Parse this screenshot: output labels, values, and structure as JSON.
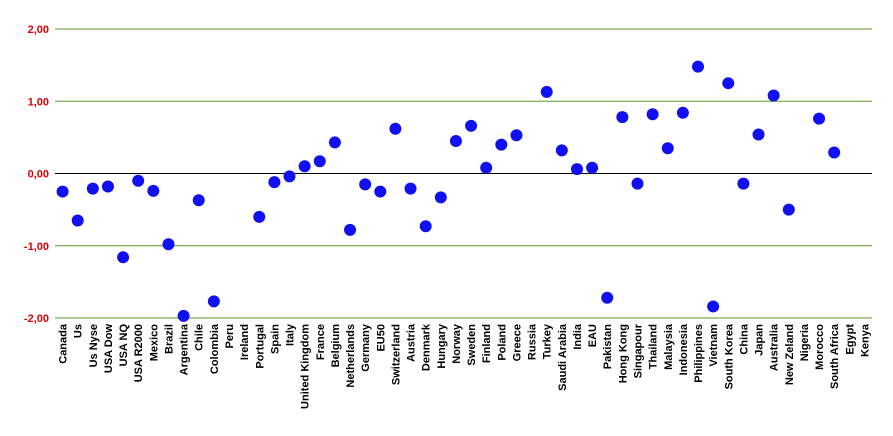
{
  "chart_data": {
    "type": "scatter",
    "categories": [
      "Canada",
      "Us",
      "Us Nyse",
      "USA Dow",
      "USA NQ",
      "USA R2000",
      "Mexico",
      "Brazil",
      "Argentina",
      "Chile",
      "Colombia",
      "Peru",
      "Ireland",
      "Portugal",
      "Spain",
      "Italy",
      "United Kingdom",
      "France",
      "Belgium",
      "Netherlands",
      "Germany",
      "EU50",
      "Switzerland",
      "Austria",
      "Denmark",
      "Hungary",
      "Norway",
      "Sweden",
      "Finland",
      "Poland",
      "Greece",
      "Russia",
      "Turkey",
      "Saudi Arabia",
      "India",
      "EAU",
      "Pakistan",
      "Hong Kong",
      "Singapour",
      "Thailand",
      "Malaysia",
      "Indonesia",
      "Philippines",
      "Vietnam",
      "South Korea",
      "China",
      "Japan",
      "Australia",
      "New Zeland",
      "Nigeria",
      "Morocco",
      "South Africa",
      "Egypt",
      "Kenya"
    ],
    "values": [
      -0.25,
      -0.65,
      -0.21,
      -0.18,
      -1.16,
      -0.1,
      -0.24,
      -0.98,
      -1.97,
      -0.37,
      -1.77,
      null,
      null,
      -0.6,
      -0.12,
      -0.04,
      0.1,
      0.17,
      0.43,
      -0.78,
      -0.15,
      -0.25,
      0.62,
      -0.21,
      -0.73,
      -0.33,
      0.45,
      0.66,
      0.08,
      0.4,
      0.53,
      null,
      1.13,
      0.32,
      0.06,
      0.08,
      -1.72,
      0.78,
      -0.14,
      0.82,
      0.35,
      0.84,
      1.48,
      -1.84,
      1.25,
      -0.14,
      0.54,
      1.08,
      -0.5,
      null,
      0.76,
      0.29,
      null,
      null
    ],
    "color": "#1010f0",
    "ylim": [
      -2,
      2
    ],
    "yticks": [
      {
        "value": -2,
        "label": "-2,00"
      },
      {
        "value": -1,
        "label": "-1,00"
      },
      {
        "value": 0,
        "label": "0,00"
      },
      {
        "value": 1,
        "label": "1,00"
      },
      {
        "value": 2,
        "label": "2,00"
      }
    ],
    "grid": true,
    "grid_color": "#5a9a2a",
    "zero_line_color": "#000000",
    "tick_label_color": "#e00000"
  }
}
